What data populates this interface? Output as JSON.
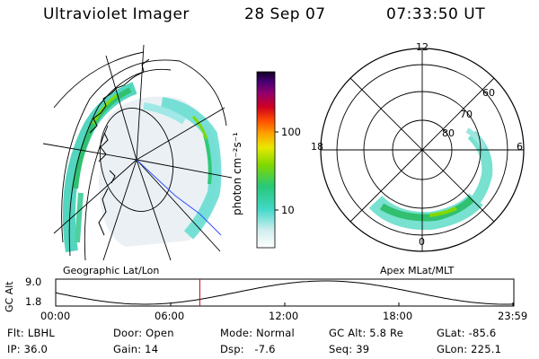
{
  "header": {
    "instrument": "Ultraviolet Imager",
    "date": "28 Sep 07",
    "time": "07:33:50 UT"
  },
  "colors": {
    "background": "#ffffff",
    "foreground": "#000000",
    "projection_line": "#3050ff",
    "time_marker": "#d00000"
  },
  "geo_map": {
    "label": "Geographic Lat/Lon"
  },
  "polar_map": {
    "label": "Apex MLat/MLT",
    "mlt_labels": {
      "top": "12",
      "left": "18",
      "right": "6",
      "bottom": "0"
    },
    "lat_labels": [
      "60",
      "70",
      "80"
    ]
  },
  "colorbar": {
    "unit_label": "photon cm⁻²s⁻¹",
    "ticks": [
      "100",
      "10"
    ]
  },
  "timeline": {
    "y_label": "GC Alt",
    "y_ticks": [
      "9.0",
      "1.8"
    ],
    "x_ticks": [
      "00:00",
      "06:00",
      "12:00",
      "18:00",
      "23:59"
    ],
    "current_time": "07:33:50"
  },
  "info": {
    "row1": {
      "filter": "Flt: LBHL",
      "door": "Door: Open",
      "mode": "Mode: Normal",
      "gc_alt": "GC Alt: 5.8 Re",
      "glat": "GLat: -85.6"
    },
    "row2": {
      "ip": "IP: 36.0",
      "gain": "Gain: 14",
      "dsp": "Dsp:   -7.6",
      "seq": "Seq: 39",
      "glon": "GLon: 225.1"
    }
  }
}
